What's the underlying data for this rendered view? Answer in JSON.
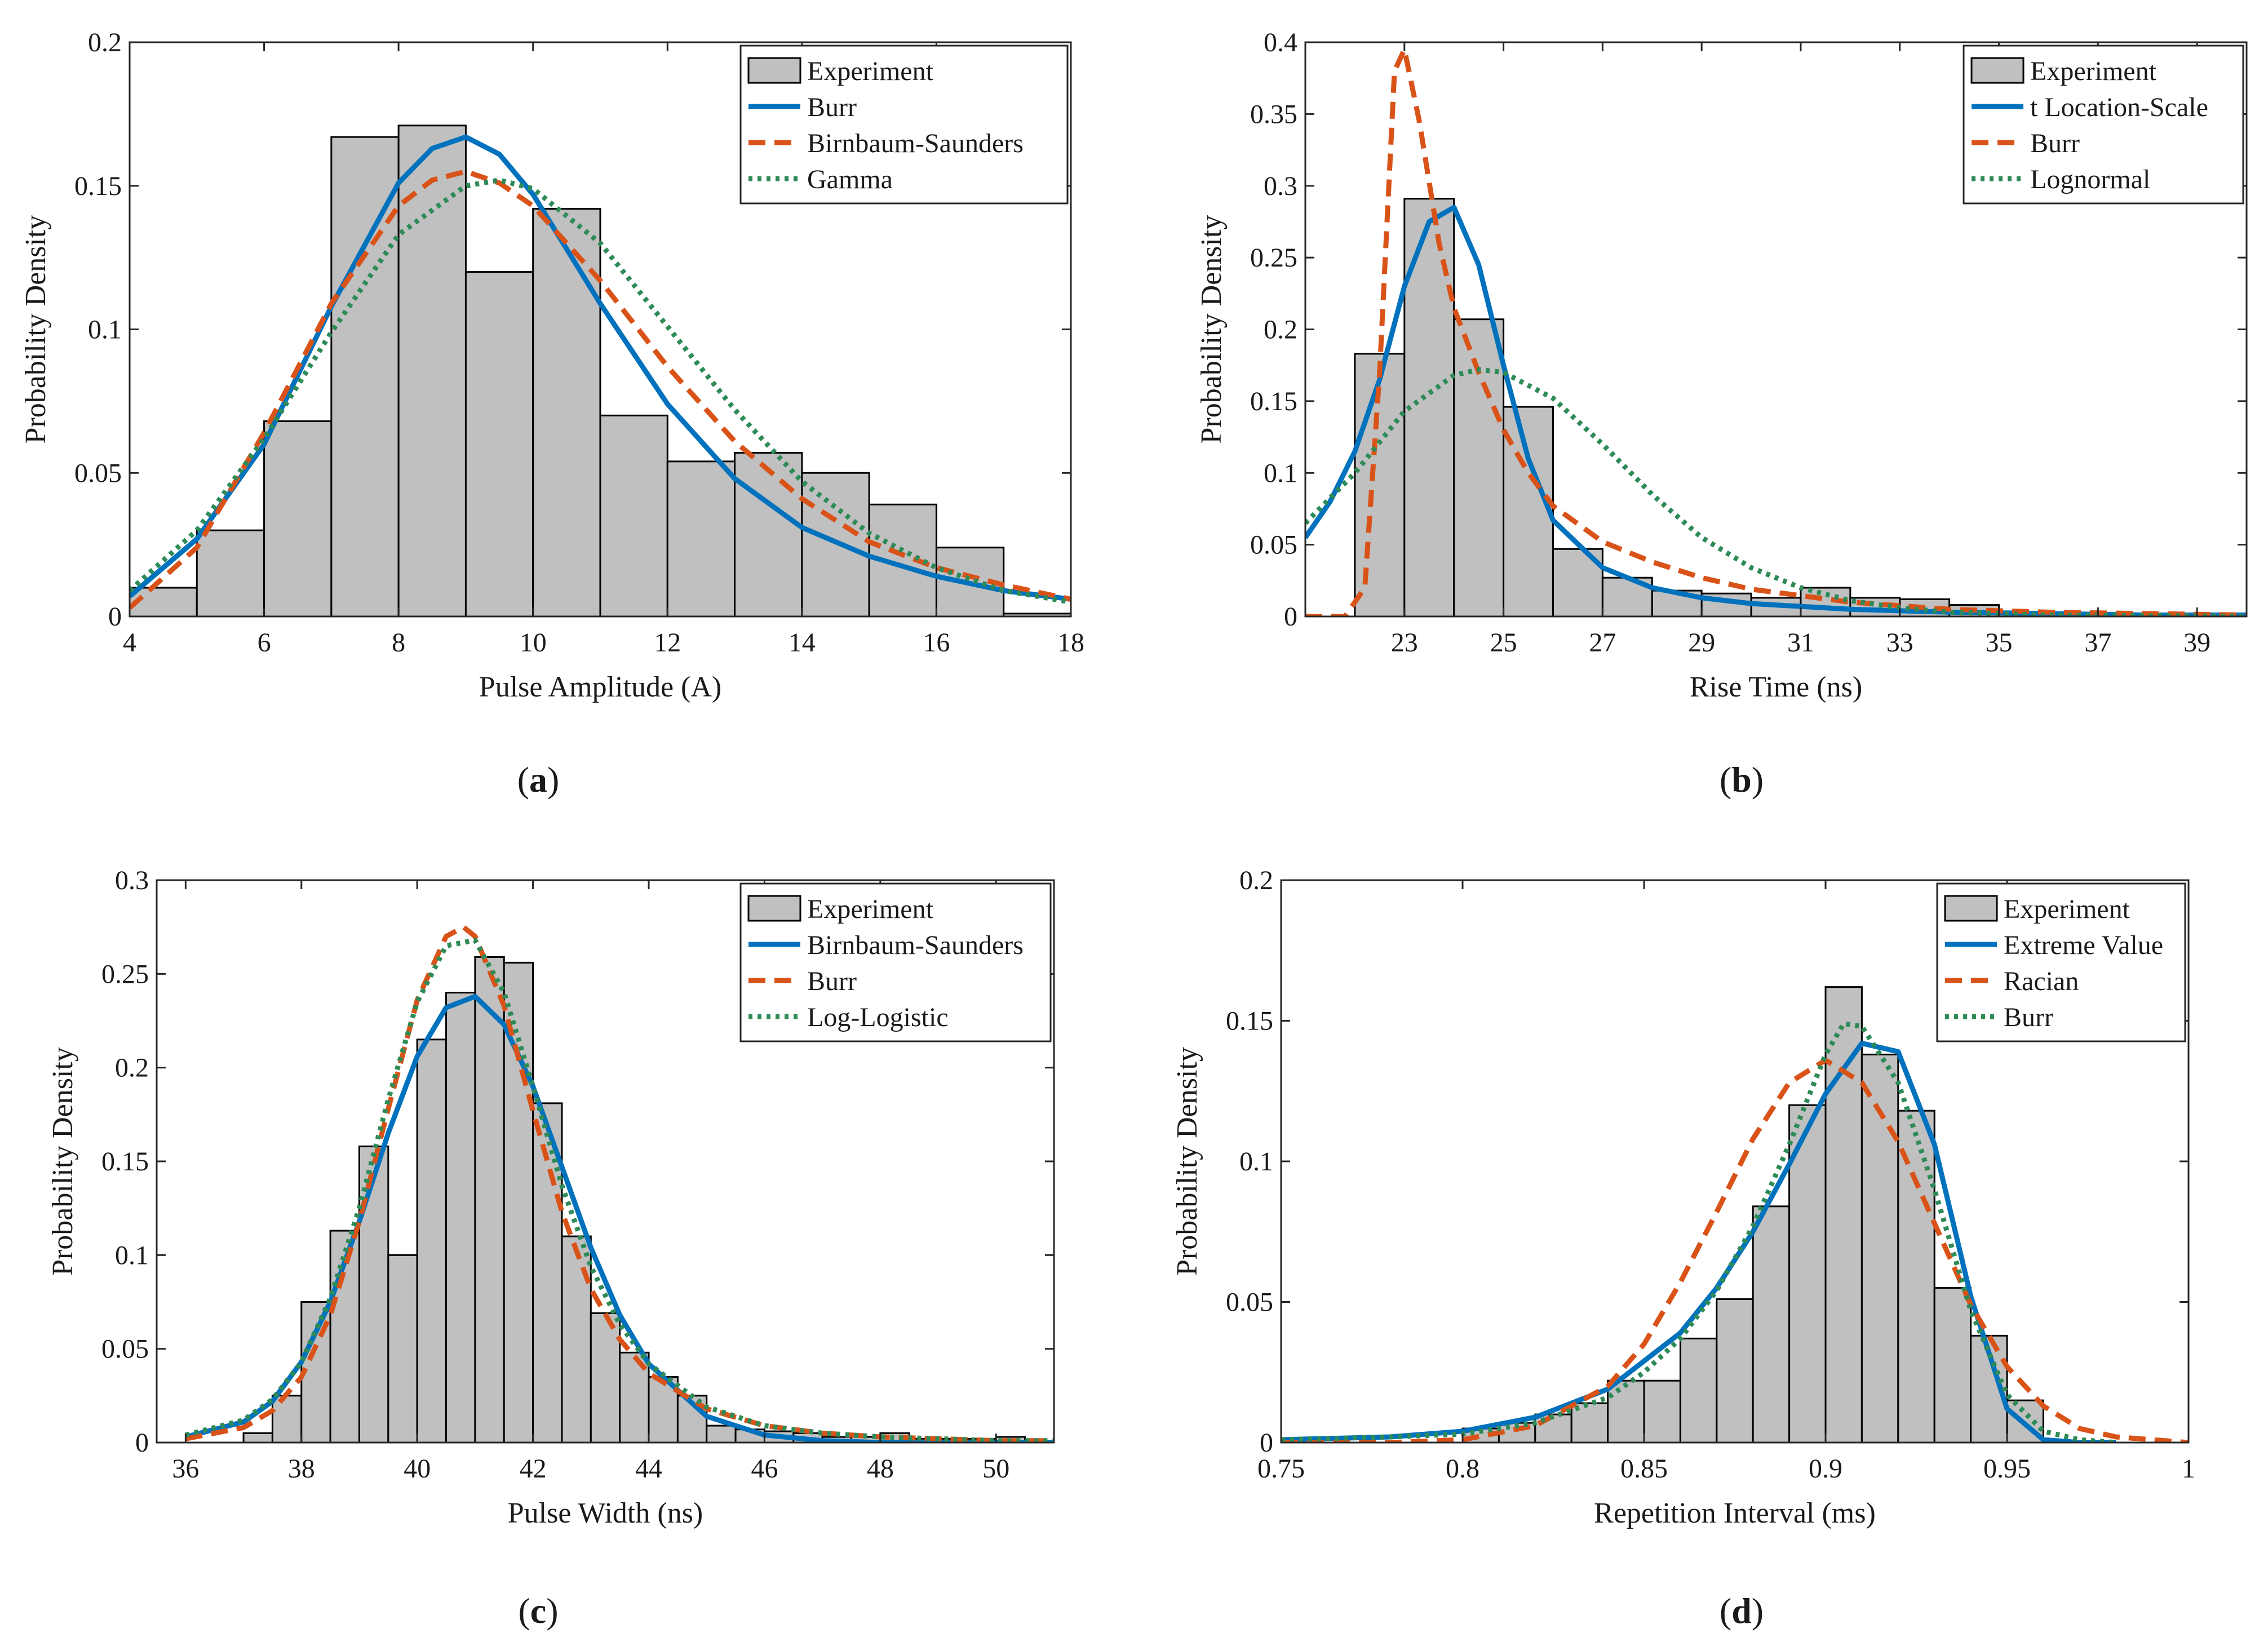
{
  "colors": {
    "bar_fill": "#c0c0c0",
    "bar_stroke": "#000000",
    "blue": "#0072bd",
    "orange": "#d95319",
    "green": "#2e8b57",
    "axis": "#262626"
  },
  "chart_data": [
    {
      "type": "bar",
      "caption": "a",
      "xlabel": "Pulse Amplitude (A)",
      "ylabel": "Probability Density",
      "xlim": [
        4,
        18
      ],
      "ylim": [
        0,
        0.2
      ],
      "xticks": [
        4,
        6,
        8,
        10,
        12,
        14,
        16,
        18
      ],
      "xtick_labels": [
        "4",
        "6",
        "8",
        "10",
        "12",
        "14",
        "16",
        "18"
      ],
      "yticks": [
        0,
        0.05,
        0.1,
        0.15,
        0.2
      ],
      "ytick_labels": [
        "0",
        "0.05",
        "0.1",
        "0.15",
        "0.2"
      ],
      "legend_position": "top-right",
      "histogram": {
        "name": "Experiment",
        "edges": [
          4,
          5,
          6,
          7,
          8,
          9,
          10,
          11,
          12,
          13,
          14,
          15,
          16,
          17,
          18
        ],
        "values": [
          0.01,
          0.03,
          0.068,
          0.167,
          0.171,
          0.12,
          0.142,
          0.07,
          0.054,
          0.057,
          0.05,
          0.039,
          0.024,
          0.001
        ]
      },
      "curves": [
        {
          "name": "Burr",
          "style": "solid",
          "color": "#0072bd",
          "x": [
            4,
            5,
            6,
            7,
            8,
            8.5,
            9,
            9.5,
            10,
            11,
            12,
            13,
            14,
            15,
            16,
            17,
            18
          ],
          "y": [
            0.007,
            0.027,
            0.06,
            0.108,
            0.151,
            0.163,
            0.167,
            0.161,
            0.147,
            0.109,
            0.074,
            0.048,
            0.031,
            0.021,
            0.014,
            0.009,
            0.006
          ]
        },
        {
          "name": "Birnbaum-Saunders",
          "style": "dashed",
          "color": "#d95319",
          "x": [
            4,
            5,
            6,
            7,
            8,
            8.5,
            9,
            9.5,
            10,
            11,
            12,
            13,
            14,
            15,
            16,
            17,
            18
          ],
          "y": [
            0.003,
            0.024,
            0.064,
            0.109,
            0.143,
            0.152,
            0.155,
            0.151,
            0.143,
            0.117,
            0.087,
            0.061,
            0.041,
            0.026,
            0.017,
            0.011,
            0.006
          ]
        },
        {
          "name": "Gamma",
          "style": "dotted",
          "color": "#2e8b57",
          "x": [
            4,
            5,
            6,
            7,
            8,
            9,
            9.5,
            10,
            11,
            12,
            13,
            14,
            15,
            16,
            17,
            18
          ],
          "y": [
            0.009,
            0.03,
            0.062,
            0.099,
            0.133,
            0.15,
            0.152,
            0.149,
            0.13,
            0.101,
            0.072,
            0.047,
            0.029,
            0.017,
            0.009,
            0.005
          ]
        }
      ]
    },
    {
      "type": "bar",
      "caption": "b",
      "xlabel": "Rise Time (ns)",
      "ylabel": "Probability Density",
      "xlim": [
        21,
        40
      ],
      "ylim": [
        0,
        0.4
      ],
      "xticks": [
        23,
        25,
        27,
        29,
        31,
        33,
        35,
        37,
        39
      ],
      "xtick_labels": [
        "23",
        "25",
        "27",
        "29",
        "31",
        "33",
        "35",
        "37",
        "39"
      ],
      "yticks": [
        0,
        0.05,
        0.1,
        0.15,
        0.2,
        0.25,
        0.3,
        0.35,
        0.4
      ],
      "ytick_labels": [
        "0",
        "0.05",
        "0.1",
        "0.15",
        "0.2",
        "0.25",
        "0.3",
        "0.35",
        "0.4"
      ],
      "legend_position": "top-right",
      "histogram": {
        "name": "Experiment",
        "edges": [
          22,
          23,
          24,
          25,
          26,
          27,
          28,
          29,
          30,
          31,
          32,
          33,
          34,
          35,
          36,
          37,
          38,
          39,
          40
        ],
        "values": [
          0.183,
          0.291,
          0.207,
          0.146,
          0.047,
          0.027,
          0.018,
          0.016,
          0.013,
          0.02,
          0.013,
          0.012,
          0.008,
          0.003,
          0.002,
          0.002,
          0.001,
          0.001
        ]
      },
      "curves": [
        {
          "name": "t Location-Scale",
          "style": "solid",
          "color": "#0072bd",
          "x": [
            21,
            21.5,
            22,
            22.5,
            23,
            23.5,
            24,
            24.5,
            25,
            25.5,
            26,
            27,
            28,
            29,
            30,
            32,
            34,
            36,
            38,
            40
          ],
          "y": [
            0.055,
            0.08,
            0.115,
            0.165,
            0.23,
            0.275,
            0.285,
            0.245,
            0.175,
            0.11,
            0.067,
            0.034,
            0.02,
            0.013,
            0.009,
            0.005,
            0.003,
            0.002,
            0.001,
            0.001
          ]
        },
        {
          "name": "Burr",
          "style": "dashed",
          "color": "#d95319",
          "x": [
            21,
            21.8,
            22.2,
            22.5,
            22.8,
            23,
            23.3,
            23.7,
            24,
            24.5,
            25,
            25.5,
            26,
            27,
            28,
            29,
            30,
            32,
            34,
            36,
            38,
            40
          ],
          "y": [
            0,
            0,
            0.02,
            0.17,
            0.38,
            0.395,
            0.345,
            0.26,
            0.215,
            0.17,
            0.13,
            0.1,
            0.077,
            0.052,
            0.038,
            0.027,
            0.019,
            0.01,
            0.005,
            0.003,
            0.002,
            0.001
          ]
        },
        {
          "name": "Lognormal",
          "style": "dotted",
          "color": "#2e8b57",
          "x": [
            21,
            22,
            23,
            24,
            24.5,
            25,
            26,
            27,
            28,
            29,
            30,
            31,
            32,
            33,
            34,
            36,
            38,
            40
          ],
          "y": [
            0.065,
            0.1,
            0.143,
            0.168,
            0.172,
            0.17,
            0.152,
            0.12,
            0.085,
            0.055,
            0.034,
            0.02,
            0.011,
            0.006,
            0.003,
            0.001,
            0.0005,
            0.0002
          ]
        }
      ]
    },
    {
      "type": "bar",
      "caption": "c",
      "xlabel": "Pulse Width (ns)",
      "ylabel": "Probability Density",
      "xlim": [
        35.5,
        51
      ],
      "ylim": [
        0,
        0.3
      ],
      "xticks": [
        36,
        38,
        40,
        42,
        44,
        46,
        48,
        50
      ],
      "xtick_labels": [
        "36",
        "38",
        "40",
        "42",
        "44",
        "46",
        "48",
        "50"
      ],
      "yticks": [
        0,
        0.05,
        0.1,
        0.15,
        0.2,
        0.25,
        0.3
      ],
      "ytick_labels": [
        "0",
        "0.05",
        "0.1",
        "0.15",
        "0.2",
        "0.25",
        "0.3"
      ],
      "legend_position": "top-right",
      "histogram": {
        "name": "Experiment",
        "edges": [
          37,
          37.5,
          38,
          38.5,
          39,
          39.5,
          40,
          40.5,
          41,
          41.5,
          42,
          42.5,
          43,
          43.5,
          44,
          44.5,
          45,
          45.5,
          46,
          46.5,
          47,
          47.5,
          48,
          48.5,
          49,
          49.5,
          50,
          50.5,
          51
        ],
        "values": [
          0.005,
          0.025,
          0.075,
          0.113,
          0.158,
          0.1,
          0.215,
          0.24,
          0.259,
          0.256,
          0.181,
          0.11,
          0.069,
          0.048,
          0.035,
          0.025,
          0.009,
          0.007,
          0.006,
          0.005,
          0.003,
          0.003,
          0.005,
          0.002,
          0.002,
          0.002,
          0.003,
          0.001
        ]
      },
      "curves": [
        {
          "name": "Birnbaum-Saunders",
          "style": "solid",
          "color": "#0072bd",
          "x": [
            36,
            37,
            37.5,
            38,
            38.5,
            39,
            39.5,
            40,
            40.5,
            41,
            41.5,
            42,
            42.5,
            43,
            43.5,
            44,
            45,
            46,
            47,
            48,
            49,
            50,
            51
          ],
          "y": [
            0.003,
            0.011,
            0.022,
            0.043,
            0.075,
            0.118,
            0.165,
            0.206,
            0.232,
            0.238,
            0.223,
            0.19,
            0.147,
            0.104,
            0.068,
            0.042,
            0.014,
            0.004,
            0.001,
            0,
            0,
            0,
            0
          ]
        },
        {
          "name": "Burr",
          "style": "dashed",
          "color": "#d95319",
          "x": [
            36,
            37,
            37.5,
            38,
            38.5,
            39,
            39.5,
            40,
            40.5,
            40.8,
            41,
            41.5,
            42,
            42.5,
            43,
            43.5,
            44,
            45,
            46,
            47,
            48,
            49,
            50,
            51
          ],
          "y": [
            0.002,
            0.008,
            0.017,
            0.035,
            0.068,
            0.118,
            0.178,
            0.236,
            0.27,
            0.275,
            0.27,
            0.233,
            0.177,
            0.123,
            0.082,
            0.055,
            0.037,
            0.018,
            0.009,
            0.005,
            0.003,
            0.002,
            0.001,
            0.001
          ]
        },
        {
          "name": "Log-Logistic",
          "style": "dotted",
          "color": "#2e8b57",
          "x": [
            36,
            37,
            37.5,
            38,
            38.5,
            39,
            39.5,
            40,
            40.5,
            41,
            41.5,
            42,
            42.5,
            43,
            43.5,
            44,
            45,
            46,
            47,
            48,
            49,
            50,
            51
          ],
          "y": [
            0.004,
            0.012,
            0.023,
            0.043,
            0.077,
            0.125,
            0.183,
            0.235,
            0.265,
            0.268,
            0.24,
            0.19,
            0.137,
            0.094,
            0.063,
            0.042,
            0.019,
            0.009,
            0.005,
            0.003,
            0.002,
            0.001,
            0.001
          ]
        }
      ]
    },
    {
      "type": "bar",
      "caption": "d",
      "xlabel": "Repetition Interval (ms)",
      "ylabel": "Probability Density",
      "xlim": [
        0.75,
        1
      ],
      "ylim": [
        0,
        0.2
      ],
      "xticks": [
        0.75,
        0.8,
        0.85,
        0.9,
        0.95,
        1
      ],
      "xtick_labels": [
        "0.75",
        "0.8",
        "0.85",
        "0.9",
        "0.95",
        "1"
      ],
      "yticks": [
        0,
        0.05,
        0.1,
        0.15,
        0.2
      ],
      "ytick_labels": [
        "0",
        "0.05",
        "0.1",
        "0.15",
        "0.2"
      ],
      "legend_position": "top-right",
      "histogram": {
        "name": "Experiment",
        "edges": [
          0.8,
          0.81,
          0.82,
          0.83,
          0.84,
          0.85,
          0.86,
          0.87,
          0.88,
          0.89,
          0.9,
          0.91,
          0.92,
          0.93,
          0.94,
          0.95,
          0.96
        ],
        "values": [
          0.005,
          0.007,
          0.01,
          0.014,
          0.022,
          0.022,
          0.037,
          0.051,
          0.084,
          0.12,
          0.162,
          0.138,
          0.118,
          0.055,
          0.038,
          0.015
        ]
      },
      "curves": [
        {
          "name": "Extreme Value",
          "style": "solid",
          "color": "#0072bd",
          "x": [
            0.75,
            0.78,
            0.8,
            0.82,
            0.84,
            0.86,
            0.87,
            0.88,
            0.89,
            0.9,
            0.91,
            0.92,
            0.93,
            0.94,
            0.95,
            0.96,
            0.97,
            0.98
          ],
          "y": [
            0.001,
            0.002,
            0.004,
            0.009,
            0.019,
            0.039,
            0.055,
            0.075,
            0.099,
            0.124,
            0.142,
            0.139,
            0.106,
            0.052,
            0.012,
            0.001,
            0,
            0
          ]
        },
        {
          "name": "Racian",
          "style": "dashed",
          "color": "#d95319",
          "x": [
            0.75,
            0.78,
            0.8,
            0.82,
            0.84,
            0.85,
            0.86,
            0.87,
            0.88,
            0.89,
            0.9,
            0.91,
            0.92,
            0.93,
            0.94,
            0.95,
            0.96,
            0.97,
            0.98,
            1
          ],
          "y": [
            0,
            0,
            0.001,
            0.006,
            0.02,
            0.035,
            0.057,
            0.082,
            0.108,
            0.128,
            0.136,
            0.128,
            0.107,
            0.078,
            0.049,
            0.027,
            0.013,
            0.005,
            0.002,
            0
          ]
        },
        {
          "name": "Burr",
          "style": "dotted",
          "color": "#2e8b57",
          "x": [
            0.75,
            0.78,
            0.8,
            0.82,
            0.84,
            0.85,
            0.86,
            0.87,
            0.88,
            0.89,
            0.9,
            0.905,
            0.91,
            0.92,
            0.93,
            0.94,
            0.95,
            0.96,
            0.97,
            0.98
          ],
          "y": [
            0.001,
            0.002,
            0.003,
            0.007,
            0.016,
            0.025,
            0.037,
            0.054,
            0.077,
            0.106,
            0.138,
            0.149,
            0.148,
            0.128,
            0.09,
            0.047,
            0.017,
            0.004,
            0.001,
            0
          ]
        }
      ]
    }
  ]
}
